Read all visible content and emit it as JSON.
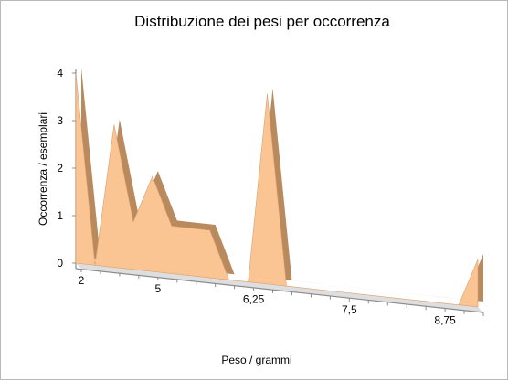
{
  "chart_data": {
    "type": "area",
    "title": "Distribuzione dei pesi per occorrenza",
    "xlabel": "Peso / grammi",
    "ylabel": "Occorrenza / esemplari",
    "ylim": [
      0,
      4
    ],
    "y_ticks": [
      "0",
      "1",
      "2",
      "3",
      "4"
    ],
    "x_tick_labels": [
      "2",
      "5",
      "6,25",
      "7,5",
      "8,75"
    ],
    "grid": false,
    "legend": "none",
    "series": [
      {
        "values": [
          4,
          0,
          3,
          1,
          2,
          1,
          1,
          1,
          0,
          0,
          4,
          0,
          0,
          0,
          0,
          0,
          0,
          0,
          0,
          0,
          0,
          1
        ]
      }
    ],
    "colors": {
      "area_face": "#fbc493",
      "area_edge": "#d8a070",
      "area_top": "#b98a5e",
      "floor": "#dedede",
      "axis": "#8c8c8c"
    }
  }
}
